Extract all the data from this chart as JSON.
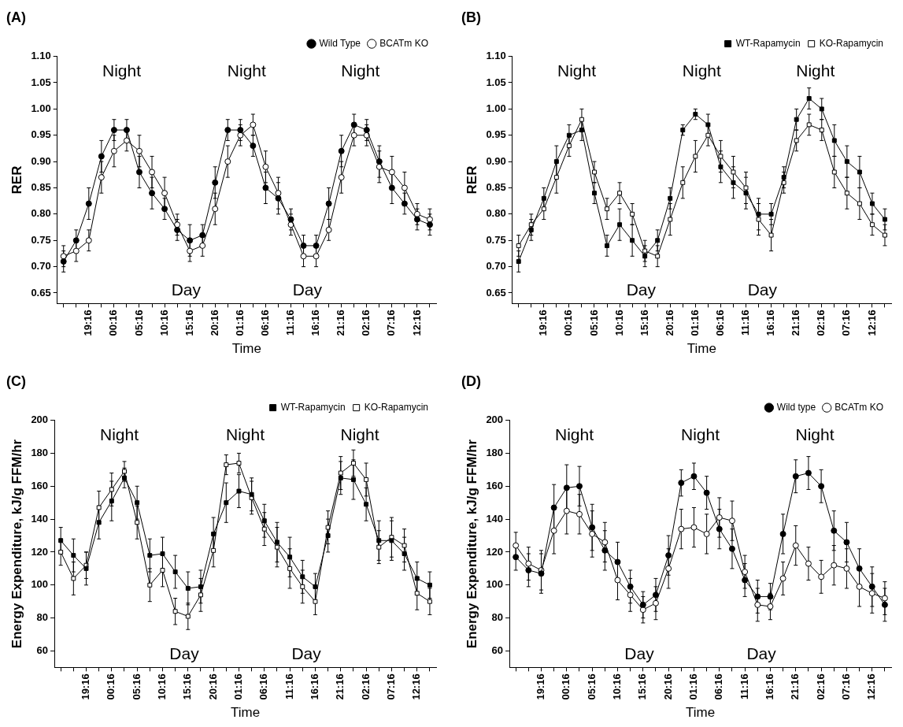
{
  "chart_data": [
    {
      "type": "line",
      "title": "(A)",
      "xlabel": "Time",
      "ylabel": "RER",
      "marker": "circle",
      "legend": "top right",
      "grid": false,
      "categories": [
        null,
        null,
        "19:16",
        null,
        "00:16",
        null,
        "05:16",
        null,
        "10:16",
        null,
        "15:16",
        null,
        "20:16",
        null,
        "01:16",
        null,
        "06:16",
        null,
        "11:16",
        null,
        "16:16",
        null,
        "21:16",
        null,
        "02:16",
        null,
        "07:16",
        null,
        "12:16",
        null
      ],
      "ylim": [
        0.63,
        1.1
      ],
      "yticks": [
        {
          "value": 0.65,
          "label": "0.65"
        },
        {
          "value": 0.7,
          "label": "0.70"
        },
        {
          "value": 0.75,
          "label": "0.75"
        },
        {
          "value": 0.8,
          "label": "0.80"
        },
        {
          "value": 0.85,
          "label": "0.85"
        },
        {
          "value": 0.9,
          "label": "0.90"
        },
        {
          "value": 0.95,
          "label": "0.95"
        },
        {
          "value": 1.0,
          "label": "1.00"
        },
        {
          "value": 1.05,
          "label": "1.05"
        },
        {
          "value": 1.1,
          "label": "1.10"
        }
      ],
      "annotations": [
        "Night",
        "Night",
        "Night",
        "Day",
        "Day"
      ],
      "series": [
        {
          "name": "Wild Type",
          "color": "#000000",
          "values": [
            0.71,
            0.75,
            0.82,
            0.91,
            0.96,
            0.96,
            0.88,
            0.84,
            0.81,
            0.77,
            0.75,
            0.76,
            0.86,
            0.96,
            0.96,
            0.93,
            0.85,
            0.83,
            0.79,
            0.74,
            0.74,
            0.82,
            0.92,
            0.97,
            0.96,
            0.9,
            0.85,
            0.82,
            0.79,
            0.78
          ],
          "errors": [
            0.02,
            0.02,
            0.03,
            0.03,
            0.02,
            0.02,
            0.03,
            0.03,
            0.02,
            0.02,
            0.03,
            0.02,
            0.03,
            0.02,
            0.02,
            0.02,
            0.03,
            0.03,
            0.02,
            0.02,
            0.02,
            0.03,
            0.03,
            0.02,
            0.02,
            0.03,
            0.03,
            0.02,
            0.02,
            0.02
          ]
        },
        {
          "name": "BCATm KO",
          "color": "#ffffff",
          "values": [
            0.72,
            0.73,
            0.75,
            0.87,
            0.92,
            0.94,
            0.92,
            0.88,
            0.84,
            0.78,
            0.73,
            0.74,
            0.81,
            0.9,
            0.95,
            0.97,
            0.89,
            0.84,
            0.78,
            0.72,
            0.72,
            0.77,
            0.87,
            0.95,
            0.95,
            0.89,
            0.88,
            0.85,
            0.8,
            0.79
          ],
          "errors": [
            0.02,
            0.02,
            0.02,
            0.03,
            0.03,
            0.02,
            0.03,
            0.03,
            0.03,
            0.02,
            0.02,
            0.02,
            0.03,
            0.03,
            0.02,
            0.02,
            0.03,
            0.03,
            0.02,
            0.02,
            0.02,
            0.02,
            0.03,
            0.02,
            0.02,
            0.03,
            0.03,
            0.03,
            0.02,
            0.02
          ]
        }
      ]
    },
    {
      "type": "line",
      "title": "(B)",
      "xlabel": "Time",
      "ylabel": "RER",
      "marker": "square",
      "legend": "top right",
      "grid": false,
      "categories": [
        null,
        null,
        "19:16",
        null,
        "00:16",
        null,
        "05:16",
        null,
        "10:16",
        null,
        "15:16",
        null,
        "20:16",
        null,
        "01:16",
        null,
        "06:16",
        null,
        "11:16",
        null,
        "16:16",
        null,
        "21:16",
        null,
        "02:16",
        null,
        "07:16",
        null,
        "12:16",
        null
      ],
      "ylim": [
        0.63,
        1.1
      ],
      "yticks": [
        {
          "value": 0.65,
          "label": "0.65"
        },
        {
          "value": 0.7,
          "label": "0.70"
        },
        {
          "value": 0.75,
          "label": "0.75"
        },
        {
          "value": 0.8,
          "label": "0.80"
        },
        {
          "value": 0.85,
          "label": "0.85"
        },
        {
          "value": 0.9,
          "label": "0.90"
        },
        {
          "value": 0.95,
          "label": "0.95"
        },
        {
          "value": 1.0,
          "label": "1.00"
        },
        {
          "value": 1.05,
          "label": "1.05"
        },
        {
          "value": 1.1,
          "label": "1.10"
        }
      ],
      "annotations": [
        "Night",
        "Night",
        "Night",
        "Day",
        "Day"
      ],
      "series": [
        {
          "name": "WT-Rapamycin",
          "color": "#000000",
          "values": [
            0.71,
            0.77,
            0.83,
            0.9,
            0.95,
            0.96,
            0.84,
            0.74,
            0.78,
            0.75,
            0.72,
            0.75,
            0.83,
            0.96,
            0.99,
            0.97,
            0.89,
            0.86,
            0.84,
            0.8,
            0.8,
            0.87,
            0.98,
            1.02,
            1.0,
            0.94,
            0.9,
            0.88,
            0.82,
            0.79
          ],
          "errors": [
            0.02,
            0.02,
            0.02,
            0.03,
            0.02,
            0.02,
            0.02,
            0.02,
            0.03,
            0.03,
            0.02,
            0.02,
            0.02,
            0.01,
            0.01,
            0.02,
            0.03,
            0.03,
            0.03,
            0.03,
            0.02,
            0.02,
            0.02,
            0.02,
            0.02,
            0.03,
            0.03,
            0.03,
            0.02,
            0.02
          ]
        },
        {
          "name": "KO-Rapamycin",
          "color": "#ffffff",
          "values": [
            0.74,
            0.78,
            0.81,
            0.87,
            0.93,
            0.98,
            0.88,
            0.81,
            0.84,
            0.8,
            0.73,
            0.72,
            0.79,
            0.86,
            0.91,
            0.95,
            0.91,
            0.88,
            0.85,
            0.79,
            0.76,
            0.86,
            0.94,
            0.97,
            0.96,
            0.88,
            0.84,
            0.82,
            0.78,
            0.76
          ],
          "errors": [
            0.02,
            0.02,
            0.02,
            0.03,
            0.02,
            0.02,
            0.02,
            0.02,
            0.02,
            0.02,
            0.02,
            0.02,
            0.03,
            0.03,
            0.03,
            0.02,
            0.03,
            0.03,
            0.03,
            0.03,
            0.03,
            0.02,
            0.02,
            0.02,
            0.02,
            0.03,
            0.03,
            0.03,
            0.02,
            0.02
          ]
        }
      ]
    },
    {
      "type": "line",
      "title": "(C)",
      "xlabel": "Time",
      "ylabel": "Energy Expenditure, kJ/g FFM/hr",
      "marker": "square",
      "legend": "top right",
      "grid": false,
      "categories": [
        null,
        null,
        "19:16",
        null,
        "00:16",
        null,
        "05:16",
        null,
        "10:16",
        null,
        "15:16",
        null,
        "20:16",
        null,
        "01:16",
        null,
        "06:16",
        null,
        "11:16",
        null,
        "16:16",
        null,
        "21:16",
        null,
        "02:16",
        null,
        "07:16",
        null,
        "12:16",
        null
      ],
      "ylim": [
        50,
        200
      ],
      "yticks": [
        60,
        80,
        100,
        120,
        140,
        160,
        180,
        200
      ],
      "annotations": [
        "Night",
        "Night",
        "Night",
        "Day",
        "Day"
      ],
      "series": [
        {
          "name": "WT-Rapamycin",
          "color": "#000000",
          "values": [
            127,
            118,
            110,
            138,
            151,
            165,
            150,
            118,
            119,
            108,
            98,
            99,
            131,
            150,
            157,
            155,
            139,
            126,
            117,
            105,
            99,
            130,
            165,
            164,
            149,
            127,
            127,
            119,
            104,
            100
          ],
          "errors": [
            8,
            10,
            10,
            10,
            12,
            6,
            10,
            10,
            10,
            10,
            10,
            10,
            10,
            12,
            10,
            10,
            10,
            12,
            12,
            10,
            8,
            10,
            10,
            12,
            10,
            12,
            12,
            10,
            10,
            8
          ]
        },
        {
          "name": "KO-Rapamycin",
          "color": "#ffffff",
          "values": [
            120,
            104,
            112,
            147,
            158,
            169,
            138,
            100,
            109,
            84,
            81,
            94,
            121,
            173,
            174,
            153,
            134,
            123,
            110,
            99,
            90,
            135,
            168,
            174,
            164,
            123,
            129,
            124,
            95,
            90
          ],
          "errors": [
            8,
            10,
            8,
            10,
            10,
            6,
            10,
            10,
            10,
            8,
            8,
            10,
            10,
            6,
            6,
            10,
            10,
            12,
            12,
            10,
            8,
            10,
            10,
            8,
            10,
            10,
            12,
            10,
            10,
            8
          ]
        }
      ]
    },
    {
      "type": "line",
      "title": "(D)",
      "xlabel": "Time",
      "ylabel": "Energy Expenditure, kJ/g FFM/hr",
      "marker": "circle",
      "legend": "top right",
      "grid": false,
      "categories": [
        null,
        null,
        "19:16",
        null,
        "00:16",
        null,
        "05:16",
        null,
        "10:16",
        null,
        "15:16",
        null,
        "20:16",
        null,
        "01:16",
        null,
        "06:16",
        null,
        "11:16",
        null,
        "16:16",
        null,
        "21:16",
        null,
        "02:16",
        null,
        "07:16",
        null,
        "12:16",
        null
      ],
      "ylim": [
        50,
        200
      ],
      "yticks": [
        60,
        80,
        100,
        120,
        140,
        160,
        180,
        200
      ],
      "annotations": [
        "Night",
        "Night",
        "Night",
        "Day",
        "Day"
      ],
      "series": [
        {
          "name": "Wild type",
          "color": "#000000",
          "values": [
            117,
            109,
            107,
            147,
            159,
            160,
            135,
            121,
            114,
            99,
            88,
            94,
            118,
            162,
            166,
            156,
            134,
            122,
            103,
            93,
            93,
            131,
            166,
            168,
            160,
            133,
            126,
            110,
            99,
            88
          ],
          "errors": [
            8,
            10,
            12,
            14,
            14,
            12,
            14,
            12,
            12,
            10,
            8,
            10,
            12,
            8,
            8,
            10,
            12,
            12,
            10,
            10,
            8,
            12,
            10,
            10,
            10,
            12,
            12,
            12,
            12,
            10
          ]
        },
        {
          "name": "BCATm KO",
          "color": "#ffffff",
          "values": [
            124,
            113,
            109,
            133,
            145,
            143,
            131,
            126,
            103,
            94,
            85,
            89,
            110,
            134,
            135,
            131,
            141,
            139,
            108,
            88,
            87,
            104,
            124,
            113,
            105,
            112,
            110,
            99,
            95,
            92
          ],
          "errors": [
            8,
            10,
            12,
            14,
            14,
            12,
            14,
            12,
            12,
            10,
            8,
            10,
            12,
            12,
            12,
            12,
            12,
            12,
            10,
            10,
            8,
            10,
            12,
            10,
            10,
            12,
            12,
            12,
            12,
            10
          ]
        }
      ]
    }
  ]
}
